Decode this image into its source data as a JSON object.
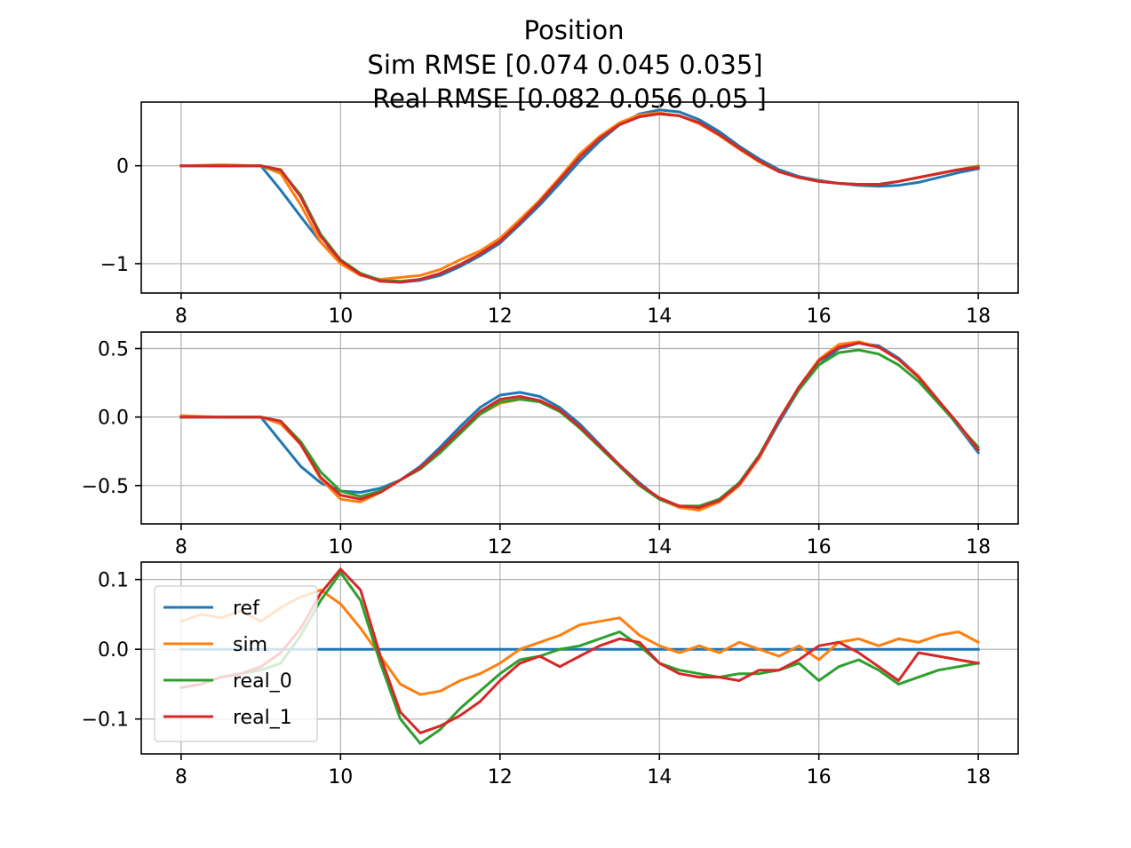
{
  "title_lines": [
    "Position",
    "Sim RMSE [0.074 0.045 0.035]",
    "Real RMSE [0.082 0.056 0.05 ]"
  ],
  "chart_data": [
    {
      "type": "line",
      "xlim": [
        7.5,
        18.5
      ],
      "ylim": [
        -1.3,
        0.65
      ],
      "xticks": [
        "8",
        "10",
        "12",
        "14",
        "16",
        "18"
      ],
      "xtick_values": [
        8,
        10,
        12,
        14,
        16,
        18
      ],
      "yticks": [
        "0",
        "−1"
      ],
      "ytick_values": [
        0,
        -1
      ],
      "grid": true,
      "series": [
        {
          "name": "ref",
          "color": "#1f77b4",
          "x": [
            8,
            8.5,
            9,
            9.25,
            9.5,
            9.75,
            10,
            10.25,
            10.5,
            10.75,
            11,
            11.25,
            11.5,
            11.75,
            12,
            12.25,
            12.5,
            12.75,
            13,
            13.25,
            13.5,
            13.75,
            14,
            14.25,
            14.5,
            14.75,
            15,
            15.25,
            15.5,
            15.75,
            16,
            16.25,
            16.5,
            16.75,
            17,
            17.25,
            17.5,
            17.75,
            18
          ],
          "y": [
            0,
            0,
            0,
            -0.25,
            -0.52,
            -0.78,
            -0.98,
            -1.1,
            -1.17,
            -1.19,
            -1.17,
            -1.12,
            -1.03,
            -0.92,
            -0.79,
            -0.6,
            -0.4,
            -0.18,
            0.05,
            0.25,
            0.42,
            0.53,
            0.57,
            0.55,
            0.47,
            0.35,
            0.2,
            0.07,
            -0.04,
            -0.11,
            -0.15,
            -0.18,
            -0.2,
            -0.21,
            -0.2,
            -0.17,
            -0.12,
            -0.07,
            -0.03
          ]
        },
        {
          "name": "sim",
          "color": "#ff7f0e",
          "x": [
            8,
            8.5,
            9,
            9.25,
            9.5,
            9.75,
            10,
            10.25,
            10.5,
            10.75,
            11,
            11.25,
            11.5,
            11.75,
            12,
            12.25,
            12.5,
            12.75,
            13,
            13.25,
            13.5,
            13.75,
            14,
            14.25,
            14.5,
            14.75,
            15,
            15.25,
            15.5,
            15.75,
            16,
            16.25,
            16.5,
            16.75,
            17,
            17.25,
            17.5,
            17.75,
            18
          ],
          "y": [
            0,
            0.01,
            0,
            -0.08,
            -0.4,
            -0.78,
            -1.0,
            -1.12,
            -1.16,
            -1.14,
            -1.12,
            -1.06,
            -0.96,
            -0.87,
            -0.74,
            -0.55,
            -0.35,
            -0.12,
            0.12,
            0.3,
            0.44,
            0.52,
            0.54,
            0.51,
            0.43,
            0.31,
            0.17,
            0.04,
            -0.06,
            -0.12,
            -0.16,
            -0.18,
            -0.19,
            -0.19,
            -0.16,
            -0.12,
            -0.08,
            -0.04,
            0
          ]
        },
        {
          "name": "real_0",
          "color": "#2ca02c",
          "x": [
            8,
            8.5,
            9,
            9.25,
            9.5,
            9.75,
            10,
            10.25,
            10.5,
            10.75,
            11,
            11.25,
            11.5,
            11.75,
            12,
            12.25,
            12.5,
            12.75,
            13,
            13.25,
            13.5,
            13.75,
            14,
            14.25,
            14.5,
            14.75,
            15,
            15.25,
            15.5,
            15.75,
            16,
            16.25,
            16.5,
            16.75,
            17,
            17.25,
            17.5,
            17.75,
            18
          ],
          "y": [
            0,
            0,
            0,
            -0.05,
            -0.3,
            -0.7,
            -0.96,
            -1.1,
            -1.17,
            -1.18,
            -1.16,
            -1.1,
            -1.01,
            -0.9,
            -0.77,
            -0.58,
            -0.37,
            -0.14,
            0.09,
            0.28,
            0.42,
            0.5,
            0.53,
            0.51,
            0.44,
            0.32,
            0.18,
            0.05,
            -0.06,
            -0.12,
            -0.16,
            -0.18,
            -0.19,
            -0.19,
            -0.16,
            -0.12,
            -0.08,
            -0.04,
            -0.01
          ]
        },
        {
          "name": "real_1",
          "color": "#d62728",
          "x": [
            8,
            8.5,
            9,
            9.25,
            9.5,
            9.75,
            10,
            10.25,
            10.5,
            10.75,
            11,
            11.25,
            11.5,
            11.75,
            12,
            12.25,
            12.5,
            12.75,
            13,
            13.25,
            13.5,
            13.75,
            14,
            14.25,
            14.5,
            14.75,
            15,
            15.25,
            15.5,
            15.75,
            16,
            16.25,
            16.5,
            16.75,
            17,
            17.25,
            17.5,
            17.75,
            18
          ],
          "y": [
            0,
            0,
            0,
            -0.04,
            -0.32,
            -0.72,
            -0.97,
            -1.11,
            -1.18,
            -1.19,
            -1.16,
            -1.1,
            -1.01,
            -0.9,
            -0.77,
            -0.58,
            -0.37,
            -0.14,
            0.09,
            0.28,
            0.42,
            0.5,
            0.53,
            0.51,
            0.44,
            0.32,
            0.18,
            0.05,
            -0.06,
            -0.12,
            -0.16,
            -0.18,
            -0.19,
            -0.19,
            -0.16,
            -0.12,
            -0.08,
            -0.04,
            -0.02
          ]
        }
      ]
    },
    {
      "type": "line",
      "xlim": [
        7.5,
        18.5
      ],
      "ylim": [
        -0.78,
        0.62
      ],
      "xticks": [
        "8",
        "10",
        "12",
        "14",
        "16",
        "18"
      ],
      "xtick_values": [
        8,
        10,
        12,
        14,
        16,
        18
      ],
      "yticks": [
        "0.5",
        "0.0",
        "−0.5"
      ],
      "ytick_values": [
        0.5,
        0,
        -0.5
      ],
      "grid": true,
      "series": [
        {
          "name": "ref",
          "color": "#1f77b4",
          "x": [
            8,
            8.5,
            9,
            9.25,
            9.5,
            9.75,
            10,
            10.25,
            10.5,
            10.75,
            11,
            11.25,
            11.5,
            11.75,
            12,
            12.25,
            12.5,
            12.75,
            13,
            13.25,
            13.5,
            13.75,
            14,
            14.25,
            14.5,
            14.75,
            15,
            15.25,
            15.5,
            15.75,
            16,
            16.25,
            16.5,
            16.75,
            17,
            17.25,
            17.5,
            17.75,
            18
          ],
          "y": [
            0,
            0,
            0,
            -0.18,
            -0.36,
            -0.48,
            -0.54,
            -0.55,
            -0.52,
            -0.46,
            -0.36,
            -0.22,
            -0.07,
            0.07,
            0.16,
            0.18,
            0.15,
            0.07,
            -0.05,
            -0.2,
            -0.35,
            -0.48,
            -0.6,
            -0.66,
            -0.67,
            -0.62,
            -0.5,
            -0.3,
            -0.04,
            0.2,
            0.38,
            0.5,
            0.54,
            0.52,
            0.43,
            0.3,
            0.12,
            -0.07,
            -0.26
          ]
        },
        {
          "name": "sim",
          "color": "#ff7f0e",
          "x": [
            8,
            8.5,
            9,
            9.25,
            9.5,
            9.75,
            10,
            10.25,
            10.5,
            10.75,
            11,
            11.25,
            11.5,
            11.75,
            12,
            12.25,
            12.5,
            12.75,
            13,
            13.25,
            13.5,
            13.75,
            14,
            14.25,
            14.5,
            14.75,
            15,
            15.25,
            15.5,
            15.75,
            16,
            16.25,
            16.5,
            16.75,
            17,
            17.25,
            17.5,
            17.75,
            18
          ],
          "y": [
            0.01,
            0,
            0,
            -0.05,
            -0.2,
            -0.45,
            -0.6,
            -0.62,
            -0.55,
            -0.46,
            -0.38,
            -0.25,
            -0.12,
            0.02,
            0.1,
            0.13,
            0.12,
            0.05,
            -0.08,
            -0.22,
            -0.36,
            -0.5,
            -0.6,
            -0.66,
            -0.68,
            -0.62,
            -0.5,
            -0.3,
            -0.02,
            0.22,
            0.42,
            0.53,
            0.55,
            0.51,
            0.42,
            0.3,
            0.12,
            -0.06,
            -0.24
          ]
        },
        {
          "name": "real_0",
          "color": "#2ca02c",
          "x": [
            8,
            8.5,
            9,
            9.25,
            9.5,
            9.75,
            10,
            10.25,
            10.5,
            10.75,
            11,
            11.25,
            11.5,
            11.75,
            12,
            12.25,
            12.5,
            12.75,
            13,
            13.25,
            13.5,
            13.75,
            14,
            14.25,
            14.5,
            14.75,
            15,
            15.25,
            15.5,
            15.75,
            16,
            16.25,
            16.5,
            16.75,
            17,
            17.25,
            17.5,
            17.75,
            18
          ],
          "y": [
            0,
            0,
            0,
            -0.03,
            -0.18,
            -0.4,
            -0.54,
            -0.58,
            -0.54,
            -0.46,
            -0.38,
            -0.26,
            -0.12,
            0.02,
            0.11,
            0.13,
            0.11,
            0.04,
            -0.08,
            -0.22,
            -0.36,
            -0.5,
            -0.6,
            -0.65,
            -0.65,
            -0.6,
            -0.48,
            -0.28,
            -0.02,
            0.2,
            0.38,
            0.47,
            0.49,
            0.46,
            0.38,
            0.26,
            0.1,
            -0.06,
            -0.22
          ]
        },
        {
          "name": "real_1",
          "color": "#d62728",
          "x": [
            8,
            8.5,
            9,
            9.25,
            9.5,
            9.75,
            10,
            10.25,
            10.5,
            10.75,
            11,
            11.25,
            11.5,
            11.75,
            12,
            12.25,
            12.5,
            12.75,
            13,
            13.25,
            13.5,
            13.75,
            14,
            14.25,
            14.5,
            14.75,
            15,
            15.25,
            15.5,
            15.75,
            16,
            16.25,
            16.5,
            16.75,
            17,
            17.25,
            17.5,
            17.75,
            18
          ],
          "y": [
            0,
            0,
            0,
            -0.03,
            -0.2,
            -0.44,
            -0.57,
            -0.6,
            -0.55,
            -0.46,
            -0.37,
            -0.24,
            -0.1,
            0.04,
            0.13,
            0.15,
            0.12,
            0.05,
            -0.07,
            -0.21,
            -0.35,
            -0.49,
            -0.59,
            -0.65,
            -0.66,
            -0.61,
            -0.49,
            -0.29,
            -0.02,
            0.22,
            0.41,
            0.51,
            0.54,
            0.51,
            0.42,
            0.29,
            0.12,
            -0.05,
            -0.24
          ]
        }
      ]
    },
    {
      "type": "line",
      "xlim": [
        7.5,
        18.5
      ],
      "ylim": [
        -0.15,
        0.125
      ],
      "xticks": [
        "8",
        "10",
        "12",
        "14",
        "16",
        "18"
      ],
      "xtick_values": [
        8,
        10,
        12,
        14,
        16,
        18
      ],
      "yticks": [
        "0.1",
        "0.0",
        "−0.1"
      ],
      "ytick_values": [
        0.1,
        0,
        -0.1
      ],
      "grid": true,
      "legend": "upper-left",
      "series": [
        {
          "name": "ref",
          "color": "#1f77b4",
          "x": [
            8,
            18
          ],
          "y": [
            0,
            0
          ]
        },
        {
          "name": "sim",
          "color": "#ff7f0e",
          "x": [
            8,
            8.25,
            8.5,
            8.75,
            9,
            9.25,
            9.5,
            9.75,
            10,
            10.25,
            10.5,
            10.75,
            11,
            11.25,
            11.5,
            11.75,
            12,
            12.25,
            12.5,
            12.75,
            13,
            13.25,
            13.5,
            13.75,
            14,
            14.25,
            14.5,
            14.75,
            15,
            15.25,
            15.5,
            15.75,
            16,
            16.25,
            16.5,
            16.75,
            17,
            17.25,
            17.5,
            17.75,
            18
          ],
          "y": [
            0.04,
            0.05,
            0.045,
            0.055,
            0.04,
            0.06,
            0.075,
            0.085,
            0.065,
            0.03,
            -0.01,
            -0.05,
            -0.065,
            -0.06,
            -0.045,
            -0.035,
            -0.02,
            0,
            0.01,
            0.02,
            0.035,
            0.04,
            0.045,
            0.02,
            0.005,
            -0.005,
            0.005,
            -0.005,
            0.01,
            0,
            -0.01,
            0.005,
            -0.015,
            0.01,
            0.015,
            0.005,
            0.015,
            0.01,
            0.02,
            0.025,
            0.01
          ]
        },
        {
          "name": "real_0",
          "color": "#2ca02c",
          "x": [
            8,
            8.25,
            8.5,
            8.75,
            9,
            9.25,
            9.5,
            9.75,
            10,
            10.25,
            10.5,
            10.75,
            11,
            11.25,
            11.5,
            11.75,
            12,
            12.25,
            12.5,
            12.75,
            13,
            13.25,
            13.5,
            13.75,
            14,
            14.25,
            14.5,
            14.75,
            15,
            15.25,
            15.5,
            15.75,
            16,
            16.25,
            16.5,
            16.75,
            17,
            17.25,
            17.5,
            17.75,
            18
          ],
          "y": [
            -0.055,
            -0.05,
            -0.04,
            -0.035,
            -0.03,
            -0.02,
            0.02,
            0.07,
            0.11,
            0.07,
            -0.02,
            -0.1,
            -0.135,
            -0.115,
            -0.085,
            -0.06,
            -0.035,
            -0.015,
            -0.01,
            0,
            0.005,
            0.015,
            0.025,
            0.005,
            -0.02,
            -0.03,
            -0.035,
            -0.04,
            -0.035,
            -0.035,
            -0.03,
            -0.02,
            -0.045,
            -0.025,
            -0.015,
            -0.03,
            -0.05,
            -0.04,
            -0.03,
            -0.025,
            -0.02
          ]
        },
        {
          "name": "real_1",
          "color": "#d62728",
          "x": [
            8,
            8.25,
            8.5,
            8.75,
            9,
            9.25,
            9.5,
            9.75,
            10,
            10.25,
            10.5,
            10.75,
            11,
            11.25,
            11.5,
            11.75,
            12,
            12.25,
            12.5,
            12.75,
            13,
            13.25,
            13.5,
            13.75,
            14,
            14.25,
            14.5,
            14.75,
            15,
            15.25,
            15.5,
            15.75,
            16,
            16.25,
            16.5,
            16.75,
            17,
            17.25,
            17.5,
            17.75,
            18
          ],
          "y": [
            -0.055,
            -0.05,
            -0.04,
            -0.035,
            -0.025,
            -0.005,
            0.03,
            0.08,
            0.115,
            0.085,
            -0.01,
            -0.09,
            -0.12,
            -0.11,
            -0.095,
            -0.075,
            -0.045,
            -0.02,
            -0.01,
            -0.025,
            -0.01,
            0.005,
            0.015,
            0.01,
            -0.02,
            -0.035,
            -0.04,
            -0.04,
            -0.045,
            -0.03,
            -0.03,
            -0.015,
            0.005,
            0.01,
            -0.005,
            -0.025,
            -0.045,
            -0.005,
            -0.01,
            -0.015,
            -0.02
          ]
        }
      ]
    }
  ]
}
